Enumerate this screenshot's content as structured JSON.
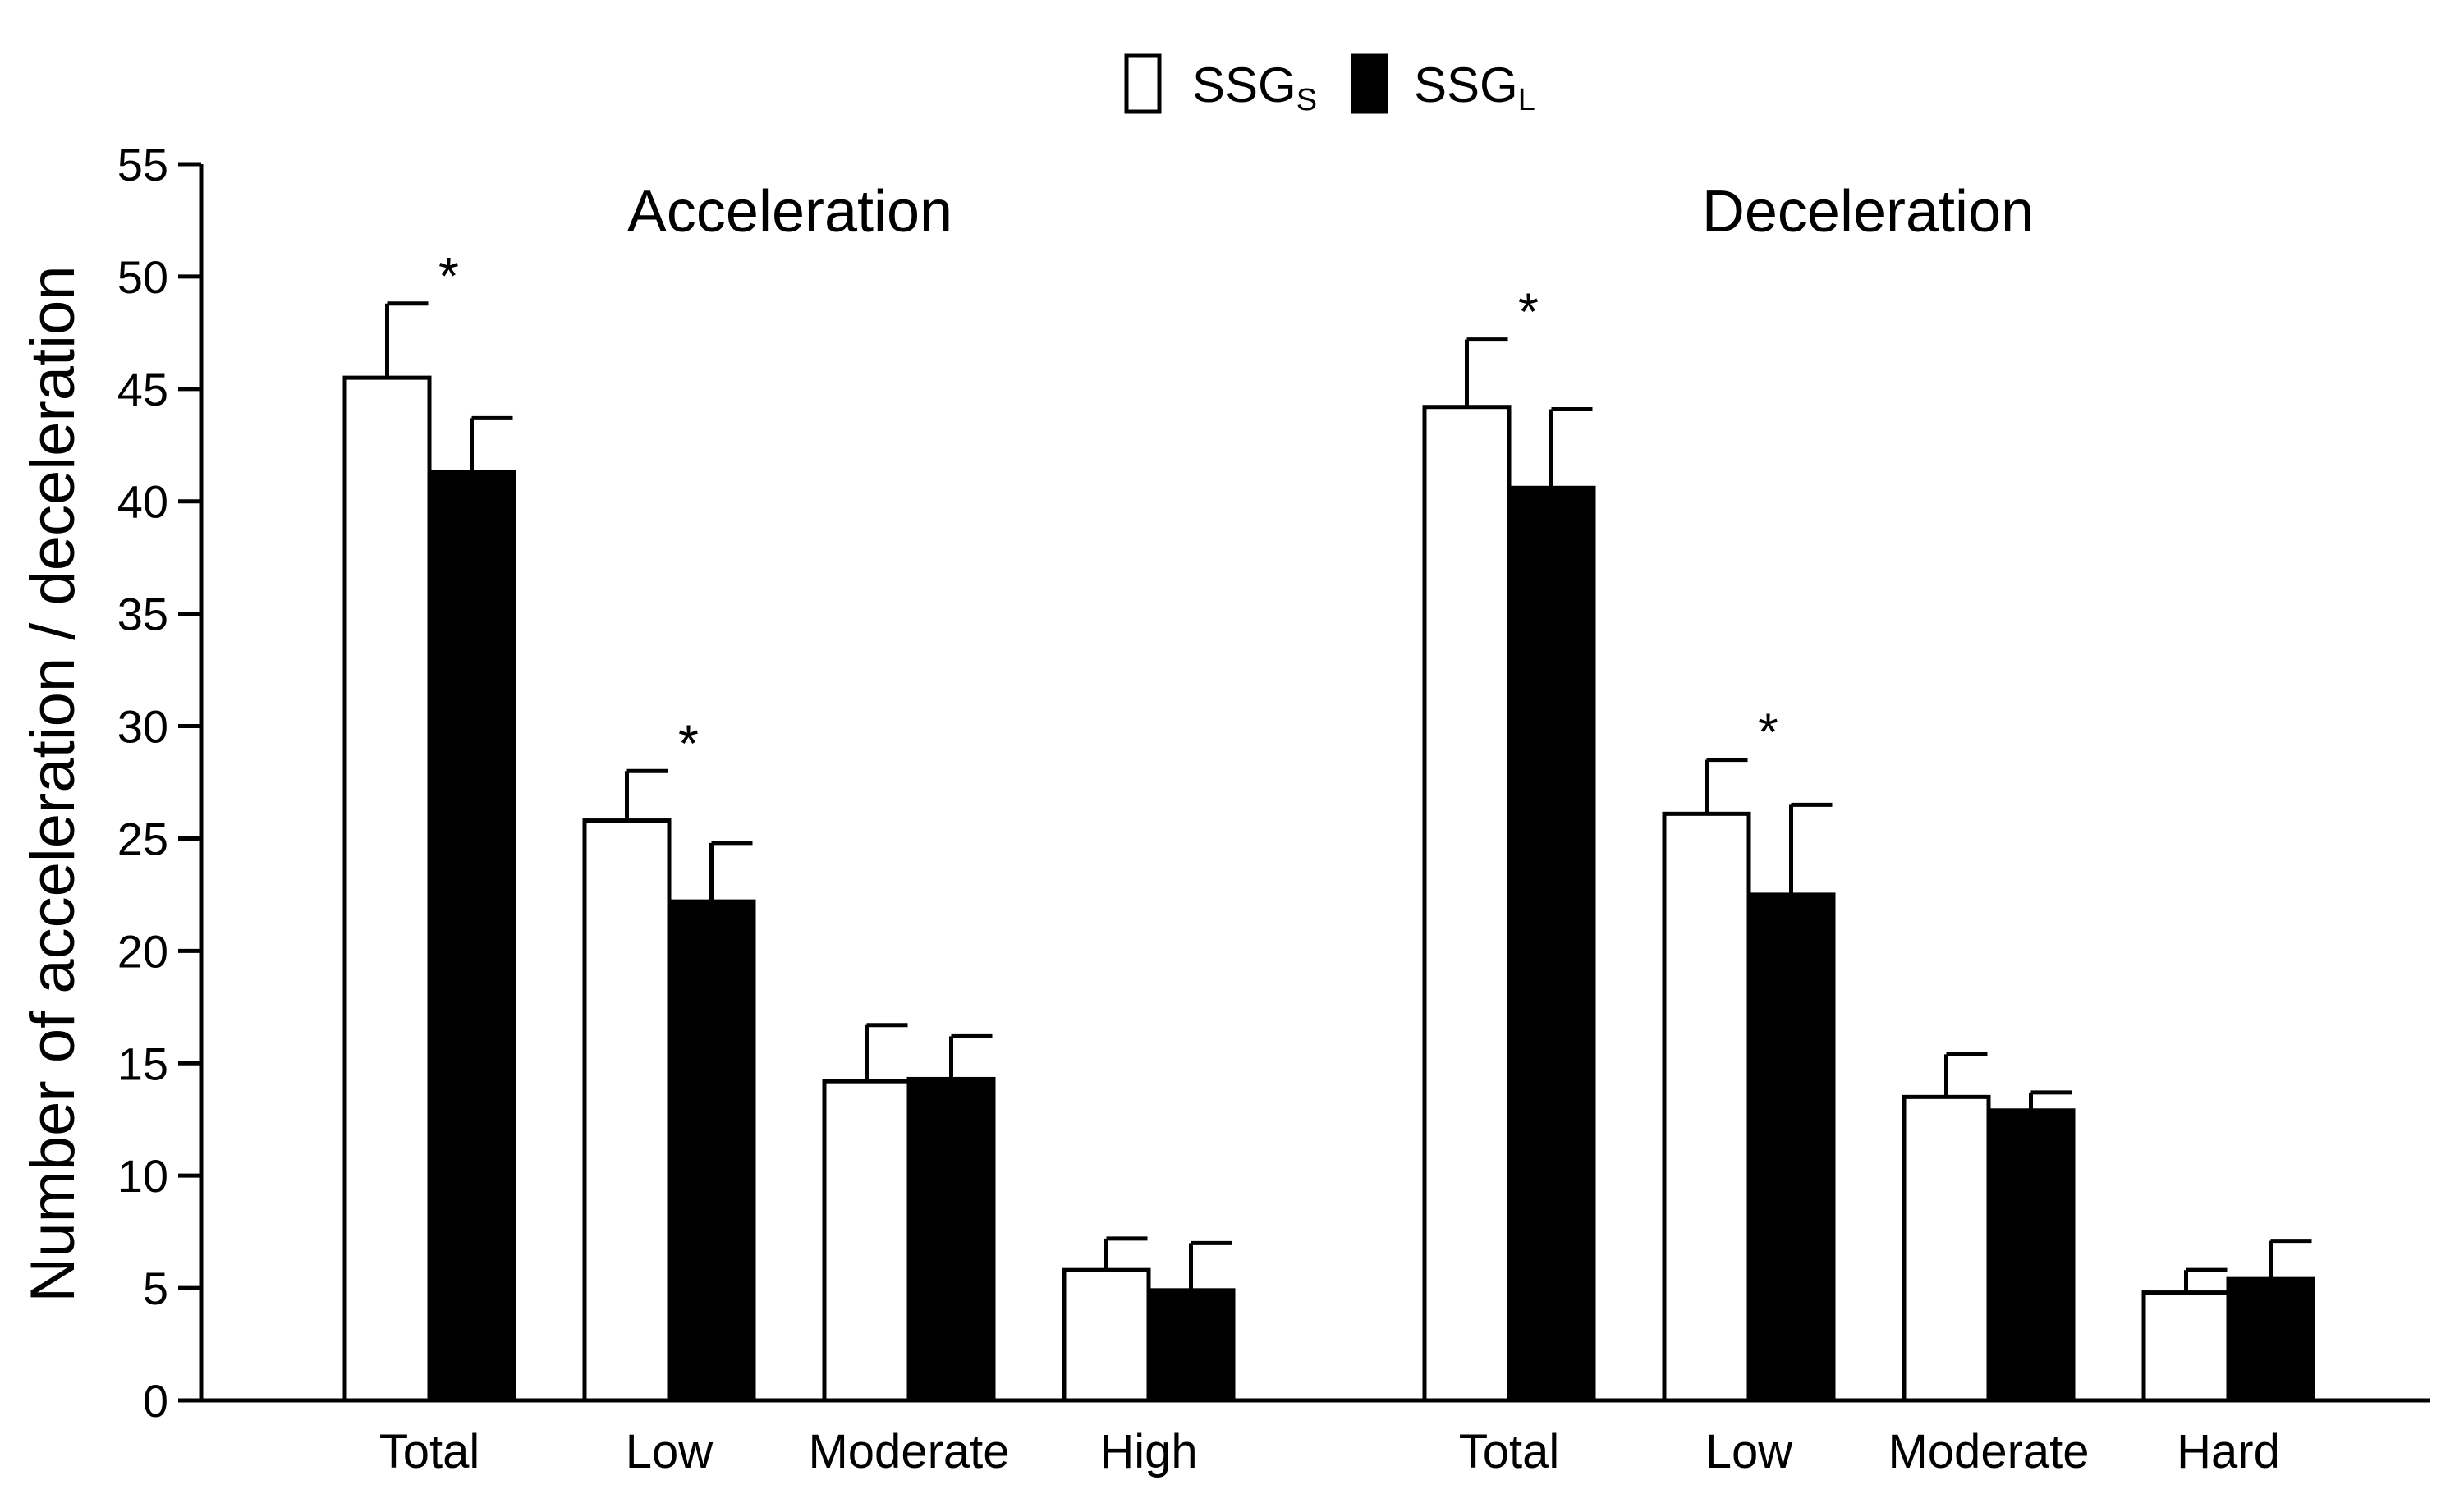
{
  "chart_data": {
    "type": "bar",
    "ylabel": "Number of acceleration / deceleration",
    "ylim": [
      0,
      55
    ],
    "yticks": [
      0,
      5,
      10,
      15,
      20,
      25,
      30,
      35,
      40,
      45,
      50,
      55
    ],
    "legend": {
      "position": "top-center",
      "entries": [
        {
          "name": "SSG",
          "subscript": "S",
          "fill": "#ffffff"
        },
        {
          "name": "SSG",
          "subscript": "L",
          "fill": "#000000"
        }
      ]
    },
    "panels": [
      {
        "title": "Acceleration",
        "categories": [
          "Total",
          "Low",
          "Moderate",
          "High"
        ],
        "series": [
          {
            "name": "SSGS",
            "values": [
              45.5,
              25.8,
              14.2,
              5.8
            ],
            "errors": [
              3.3,
              2.2,
              2.5,
              1.4
            ]
          },
          {
            "name": "SSGL",
            "values": [
              41.3,
              22.2,
              14.3,
              4.9
            ],
            "errors": [
              2.4,
              2.6,
              1.9,
              2.1
            ]
          }
        ],
        "significance": [
          "*",
          "*",
          "",
          ""
        ]
      },
      {
        "title": "Deceleration",
        "categories": [
          "Total",
          "Low",
          "Moderate",
          "Hard"
        ],
        "series": [
          {
            "name": "SSGS",
            "values": [
              44.2,
              26.1,
              13.5,
              4.8
            ],
            "errors": [
              3.0,
              2.4,
              1.9,
              1.0
            ]
          },
          {
            "name": "SSGL",
            "values": [
              40.6,
              22.5,
              12.9,
              5.4
            ],
            "errors": [
              3.5,
              4.0,
              0.8,
              1.7
            ]
          }
        ],
        "significance": [
          "*",
          "*",
          "",
          ""
        ]
      }
    ]
  }
}
